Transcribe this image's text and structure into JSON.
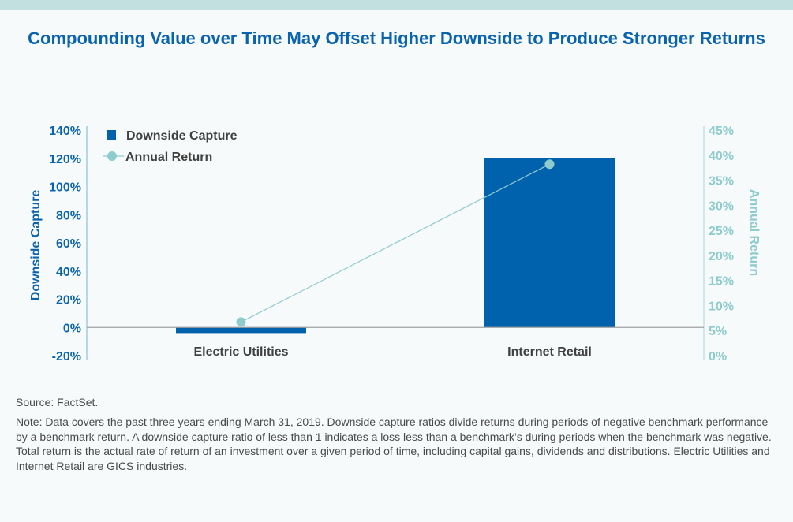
{
  "chart_data": {
    "type": "bar+line",
    "title": "Compounding Value over Time May Offset Higher Downside to Produce Stronger Returns",
    "categories": [
      "Electric Utilities",
      "Internet Retail"
    ],
    "series": [
      {
        "name": "Downside Capture",
        "type": "bar",
        "axis": "left",
        "values": [
          -4,
          120
        ],
        "color": "#0061ac"
      },
      {
        "name": "Annual Return",
        "type": "line",
        "axis": "right",
        "values": [
          6.7,
          38.2
        ],
        "color": "#8ecbcc"
      }
    ],
    "ylabel_left": "Downside Capture",
    "ylabel_right": "Annual Return",
    "ylim_left": [
      -20,
      140
    ],
    "ylim_right": [
      0,
      45
    ],
    "yticks_left": [
      "-20%",
      "0%",
      "20%",
      "40%",
      "60%",
      "80%",
      "100%",
      "120%",
      "140%"
    ],
    "yticks_right": [
      "0%",
      "5%",
      "10%",
      "15%",
      "20%",
      "25%",
      "30%",
      "35%",
      "40%",
      "45%"
    ],
    "grid": false,
    "legend_position": "top-left"
  },
  "footer": {
    "source": "Source: FactSet.",
    "note": "Note: Data covers the past three years ending March 31, 2019. Downside capture ratios divide returns during periods of negative benchmark performance by a benchmark return. A downside capture ratio of less than 1 indicates a loss less than a benchmark’s during periods when the benchmark was negative. Total return is the actual rate of return of an investment over a given period of time, including capital gains, dividends and distributions. Electric Utilities and Internet Retail are GICS industries."
  }
}
